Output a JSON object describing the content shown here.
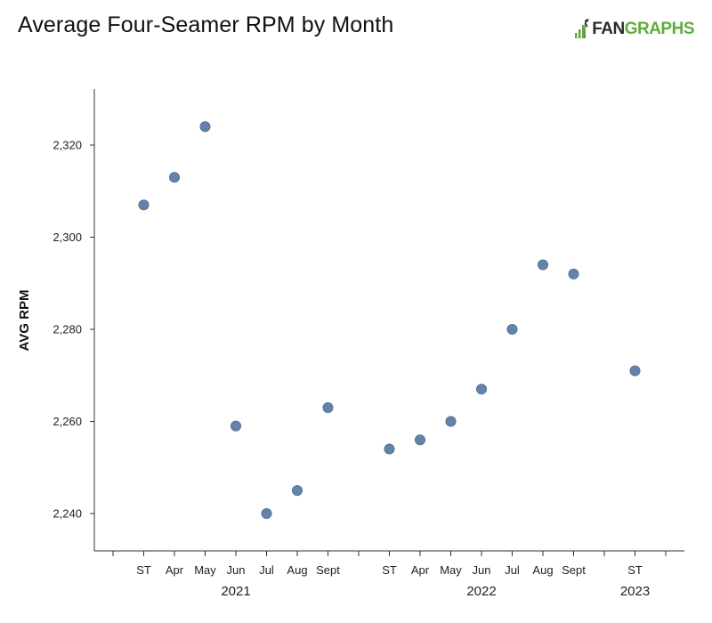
{
  "header": {
    "title": "Average Four-Seamer RPM by Month",
    "logo_part1": "FAN",
    "logo_part2": "GRAPHS",
    "logo_colors": {
      "dark": "#2b2b2b",
      "green": "#5fad3c"
    }
  },
  "chart_data": {
    "type": "scatter",
    "ylabel": "AVG RPM",
    "ylim": [
      2228,
      2332
    ],
    "yticks": [
      2240,
      2260,
      2280,
      2300,
      2320
    ],
    "ytick_labels": [
      "2,240",
      "2,260",
      "2,280",
      "2,300",
      "2,320"
    ],
    "grid": false,
    "legend": "none",
    "marker_color": "#6383a8",
    "groups": [
      {
        "year": "2021",
        "months": [
          "ST",
          "Apr",
          "May",
          "Jun",
          "Jul",
          "Aug",
          "Sept"
        ]
      },
      {
        "year": "2022",
        "months": [
          "ST",
          "Apr",
          "May",
          "Jun",
          "Jul",
          "Aug",
          "Sept"
        ]
      },
      {
        "year": "2023",
        "months": [
          "ST"
        ]
      }
    ],
    "points": [
      {
        "year": "2021",
        "month": "ST",
        "value": 2307
      },
      {
        "year": "2021",
        "month": "Apr",
        "value": 2313
      },
      {
        "year": "2021",
        "month": "May",
        "value": 2324
      },
      {
        "year": "2021",
        "month": "Jun",
        "value": 2259
      },
      {
        "year": "2021",
        "month": "Jul",
        "value": 2240
      },
      {
        "year": "2021",
        "month": "Aug",
        "value": 2245
      },
      {
        "year": "2021",
        "month": "Sept",
        "value": 2263
      },
      {
        "year": "2022",
        "month": "ST",
        "value": 2254
      },
      {
        "year": "2022",
        "month": "Apr",
        "value": 2256
      },
      {
        "year": "2022",
        "month": "May",
        "value": 2260
      },
      {
        "year": "2022",
        "month": "Jun",
        "value": 2267
      },
      {
        "year": "2022",
        "month": "Jul",
        "value": 2280
      },
      {
        "year": "2022",
        "month": "Aug",
        "value": 2294
      },
      {
        "year": "2022",
        "month": "Sept",
        "value": 2292
      },
      {
        "year": "2023",
        "month": "ST",
        "value": 2271
      }
    ]
  }
}
